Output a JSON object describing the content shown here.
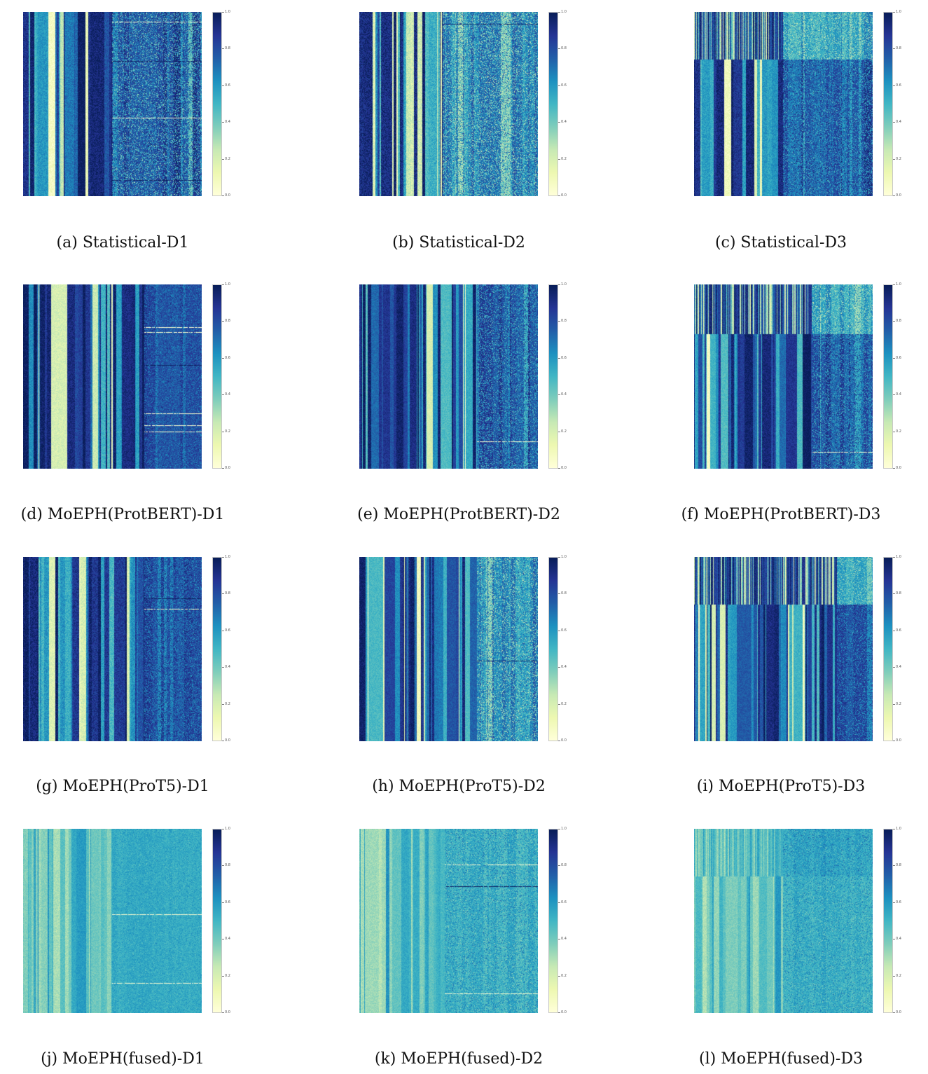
{
  "chart_data": [
    {
      "type": "heatmap",
      "id": "a",
      "caption": "(a) Statistical-D1",
      "colorbar": {
        "ticks": [
          "1.0",
          "0.8",
          "0.6",
          "0.4",
          "0.2",
          "0.0"
        ],
        "range": [
          0,
          1
        ],
        "colormap": "YlGnBu"
      },
      "pattern": {
        "left_frac": 0.5,
        "right_dark": true,
        "horizontal_split": 0,
        "mottle": 0.6,
        "noise": 0.08,
        "horizontal_lines": 0.35,
        "seed": 11
      }
    },
    {
      "type": "heatmap",
      "id": "b",
      "caption": "(b) Statistical-D2",
      "colorbar": {
        "ticks": [
          "1.0",
          "0.8",
          "0.6",
          "0.4",
          "0.2",
          "0.0"
        ],
        "range": [
          0,
          1
        ],
        "colormap": "YlGnBu"
      },
      "pattern": {
        "left_frac": 0.47,
        "right_dark": false,
        "horizontal_split": 0,
        "mottle": 0.55,
        "noise": 0.1,
        "horizontal_lines": 0.1,
        "seed": 23
      }
    },
    {
      "type": "heatmap",
      "id": "c",
      "caption": "(c) Statistical-D3",
      "colorbar": {
        "ticks": [
          "1.0",
          "0.8",
          "0.6",
          "0.4",
          "0.2",
          "0.0"
        ],
        "range": [
          0,
          1
        ],
        "colormap": "YlGnBu"
      },
      "pattern": {
        "left_frac": 0.5,
        "right_dark": true,
        "horizontal_split": 0.26,
        "mottle": 0.45,
        "noise": 0.08,
        "horizontal_lines": 0.05,
        "seed": 37
      }
    },
    {
      "type": "heatmap",
      "id": "d",
      "caption": "(d) MoEPH(ProtBERT)-D1",
      "colorbar": {
        "ticks": [
          "1.0",
          "0.8",
          "0.6",
          "0.4",
          "0.2",
          "0.0"
        ],
        "range": [
          0,
          1
        ],
        "colormap": "YlGnBu"
      },
      "pattern": {
        "left_frac": 0.68,
        "right_dark": true,
        "horizontal_split": 0,
        "mottle": 0.25,
        "noise": 0.07,
        "horizontal_lines": 0.25,
        "seed": 41
      }
    },
    {
      "type": "heatmap",
      "id": "e",
      "caption": "(e) MoEPH(ProtBERT)-D2",
      "colorbar": {
        "ticks": [
          "1.0",
          "0.8",
          "0.6",
          "0.4",
          "0.2",
          "0.0"
        ],
        "range": [
          0,
          1
        ],
        "colormap": "YlGnBu"
      },
      "pattern": {
        "left_frac": 0.66,
        "right_dark": true,
        "horizontal_split": 0,
        "mottle": 0.5,
        "noise": 0.06,
        "horizontal_lines": 0.2,
        "seed": 53
      }
    },
    {
      "type": "heatmap",
      "id": "f",
      "caption": "(f) MoEPH(ProtBERT)-D3",
      "colorbar": {
        "ticks": [
          "1.0",
          "0.8",
          "0.6",
          "0.4",
          "0.2",
          "0.0"
        ],
        "range": [
          0,
          1
        ],
        "colormap": "YlGnBu"
      },
      "pattern": {
        "left_frac": 0.66,
        "right_dark": true,
        "horizontal_split": 0.27,
        "mottle": 0.45,
        "noise": 0.06,
        "horizontal_lines": 0.05,
        "seed": 67
      }
    },
    {
      "type": "heatmap",
      "id": "g",
      "caption": "(g) MoEPH(ProT5)-D1",
      "colorbar": {
        "ticks": [
          "1.0",
          "0.8",
          "0.6",
          "0.4",
          "0.2",
          "0.0"
        ],
        "range": [
          0,
          1
        ],
        "colormap": "YlGnBu"
      },
      "pattern": {
        "left_frac": 0.68,
        "right_dark": true,
        "horizontal_split": 0,
        "mottle": 0.3,
        "noise": 0.09,
        "horizontal_lines": 0.3,
        "seed": 71
      }
    },
    {
      "type": "heatmap",
      "id": "h",
      "caption": "(h) MoEPH(ProT5)-D2",
      "colorbar": {
        "ticks": [
          "1.0",
          "0.8",
          "0.6",
          "0.4",
          "0.2",
          "0.0"
        ],
        "range": [
          0,
          1
        ],
        "colormap": "YlGnBu"
      },
      "pattern": {
        "left_frac": 0.66,
        "right_dark": false,
        "horizontal_split": 0,
        "mottle": 0.55,
        "noise": 0.06,
        "horizontal_lines": 0.1,
        "seed": 83
      }
    },
    {
      "type": "heatmap",
      "id": "i",
      "caption": "(i) MoEPH(ProT5)-D3",
      "colorbar": {
        "ticks": [
          "1.0",
          "0.8",
          "0.6",
          "0.4",
          "0.2",
          "0.0"
        ],
        "range": [
          0,
          1
        ],
        "colormap": "YlGnBu"
      },
      "pattern": {
        "left_frac": 0.8,
        "right_dark": true,
        "horizontal_split": 0.26,
        "mottle": 0.35,
        "noise": 0.06,
        "horizontal_lines": 0.05,
        "seed": 97
      }
    },
    {
      "type": "heatmap",
      "id": "j",
      "caption": "(j) MoEPH(fused)-D1",
      "colorbar": {
        "ticks": [
          "1.0",
          "0.8",
          "0.6",
          "0.4",
          "0.2",
          "0.0"
        ],
        "range": [
          0,
          1
        ],
        "colormap": "YlGnBu"
      },
      "pattern": {
        "left_frac": 0.5,
        "right_dark": false,
        "horizontal_split": 0,
        "mottle": 0.15,
        "noise": 0.05,
        "horizontal_lines": 0.1,
        "seed": 101,
        "muted": true
      }
    },
    {
      "type": "heatmap",
      "id": "k",
      "caption": "(k) MoEPH(fused)-D2",
      "colorbar": {
        "ticks": [
          "1.0",
          "0.8",
          "0.6",
          "0.4",
          "0.2",
          "0.0"
        ],
        "range": [
          0,
          1
        ],
        "colormap": "YlGnBu"
      },
      "pattern": {
        "left_frac": 0.48,
        "right_dark": false,
        "horizontal_split": 0,
        "mottle": 0.35,
        "noise": 0.05,
        "horizontal_lines": 0.12,
        "seed": 113,
        "muted": true
      }
    },
    {
      "type": "heatmap",
      "id": "l",
      "caption": "(l) MoEPH(fused)-D3",
      "colorbar": {
        "ticks": [
          "1.0",
          "0.8",
          "0.6",
          "0.4",
          "0.2",
          "0.0"
        ],
        "range": [
          0,
          1
        ],
        "colormap": "YlGnBu"
      },
      "pattern": {
        "left_frac": 0.5,
        "right_dark": false,
        "horizontal_split": 0.26,
        "mottle": 0.3,
        "noise": 0.05,
        "horizontal_lines": 0.05,
        "seed": 127,
        "muted": true
      }
    }
  ]
}
